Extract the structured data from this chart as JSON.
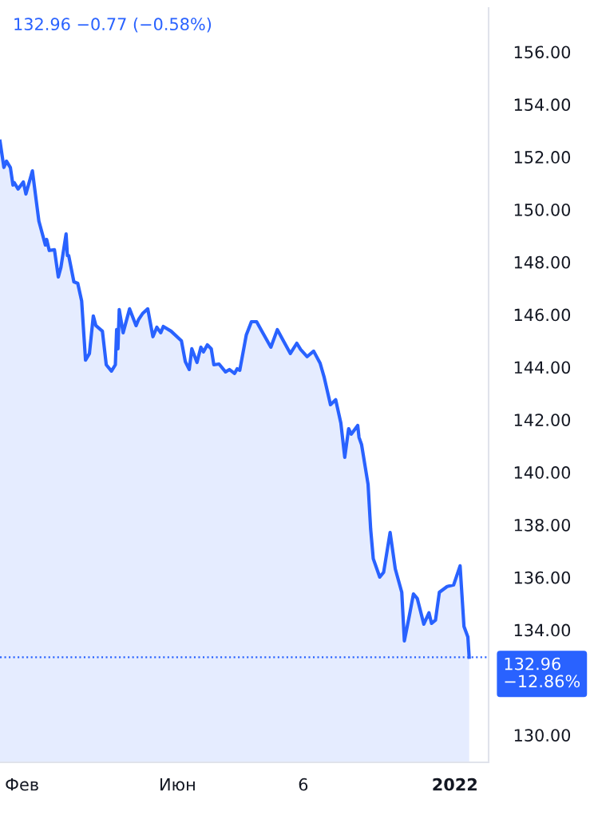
{
  "chart_data": {
    "type": "area",
    "annotations": [
      "132.96 −0.77 (−0.58%)"
    ],
    "x": [
      "2021-01-15",
      "2021-01-18",
      "2021-01-20",
      "2021-01-23",
      "2021-01-25",
      "2021-01-26",
      "2021-01-29",
      "2021-02-02",
      "2021-02-04",
      "2021-02-09",
      "2021-02-14",
      "2021-02-19",
      "2021-02-20",
      "2021-02-22",
      "2021-02-26",
      "2021-03-01",
      "2021-03-03",
      "2021-03-07",
      "2021-03-08",
      "2021-03-09",
      "2021-03-13",
      "2021-03-16",
      "2021-03-19",
      "2021-03-22",
      "2021-03-25",
      "2021-03-28",
      "2021-03-30",
      "2021-04-04",
      "2021-04-07",
      "2021-04-11",
      "2021-04-14",
      "2021-04-15",
      "2021-04-16",
      "2021-04-17",
      "2021-04-20",
      "2021-04-25",
      "2021-04-30",
      "2021-05-02",
      "2021-05-05",
      "2021-05-09",
      "2021-05-13",
      "2021-05-16",
      "2021-05-19",
      "2021-05-21",
      "2021-05-27",
      "2021-06-04",
      "2021-06-07",
      "2021-06-10",
      "2021-06-12",
      "2021-06-16",
      "2021-06-19",
      "2021-06-21",
      "2021-06-24",
      "2021-06-27",
      "2021-06-29",
      "2021-07-03",
      "2021-07-08",
      "2021-07-11",
      "2021-07-15",
      "2021-07-17",
      "2021-07-19",
      "2021-07-24",
      "2021-07-28",
      "2021-08-01",
      "2021-08-05",
      "2021-08-12",
      "2021-08-17",
      "2021-08-21",
      "2021-08-27",
      "2021-09-01",
      "2021-09-04",
      "2021-09-09",
      "2021-09-14",
      "2021-09-19",
      "2021-09-22",
      "2021-09-27",
      "2021-10-01",
      "2021-10-05",
      "2021-10-08",
      "2021-10-11",
      "2021-10-13",
      "2021-10-18",
      "2021-10-19",
      "2021-10-21",
      "2021-10-26",
      "2021-10-28",
      "2021-10-30",
      "2021-11-04",
      "2021-11-07",
      "2021-11-12",
      "2021-11-16",
      "2021-11-21",
      "2021-11-23",
      "2021-11-27",
      "2021-11-30",
      "2021-12-03",
      "2021-12-08",
      "2021-12-12",
      "2021-12-14",
      "2021-12-17",
      "2021-12-20",
      "2021-12-26",
      "2021-12-31",
      "2022-01-05",
      "2022-01-08",
      "2022-01-11",
      "2022-01-12"
    ],
    "series": [
      {
        "color": "#2962ff",
        "values": [
          152.6,
          151.6,
          151.84,
          151.6,
          150.93,
          151.02,
          150.78,
          151.05,
          150.59,
          151.47,
          149.56,
          148.65,
          148.86,
          148.44,
          148.47,
          147.43,
          147.8,
          149.07,
          148.25,
          148.25,
          147.25,
          147.19,
          146.52,
          144.27,
          144.52,
          145.95,
          145.58,
          145.37,
          144.09,
          143.85,
          144.09,
          145.43,
          144.7,
          146.19,
          145.31,
          146.22,
          145.58,
          145.82,
          146.04,
          146.22,
          145.16,
          145.52,
          145.31,
          145.55,
          145.37,
          145.0,
          144.21,
          143.91,
          144.7,
          144.18,
          144.76,
          144.58,
          144.85,
          144.7,
          144.09,
          144.12,
          143.82,
          143.91,
          143.76,
          143.94,
          143.88,
          145.22,
          145.73,
          145.73,
          145.37,
          144.76,
          145.43,
          145.06,
          144.52,
          144.91,
          144.67,
          144.4,
          144.61,
          144.15,
          143.64,
          142.57,
          142.76,
          141.87,
          140.57,
          141.66,
          141.45,
          141.78,
          141.33,
          141.05,
          139.54,
          137.83,
          136.71,
          136.01,
          136.19,
          137.71,
          136.32,
          135.43,
          133.58,
          134.58,
          135.37,
          135.19,
          134.22,
          134.65,
          134.25,
          134.37,
          135.43,
          135.65,
          135.71,
          136.44,
          134.13,
          133.73,
          132.96
        ]
      }
    ],
    "xlim": [
      "2021-01-15",
      "2022-01-27"
    ],
    "xticks": [
      {
        "value": "2021-02-01",
        "label": "Фев"
      },
      {
        "value": "2021-06-01",
        "label": "Июн"
      },
      {
        "value": "2021-09-06",
        "label": "6"
      },
      {
        "value": "2022-01-01",
        "label": "2022"
      }
    ],
    "ylim": [
      128.96,
      157.67
    ],
    "yticks": [
      {
        "value": 130,
        "label": "130.00"
      },
      {
        "value": 134,
        "label": "134.00"
      },
      {
        "value": 136,
        "label": "136.00"
      },
      {
        "value": 138,
        "label": "138.00"
      },
      {
        "value": 140,
        "label": "140.00"
      },
      {
        "value": 142,
        "label": "142.00"
      },
      {
        "value": 144,
        "label": "144.00"
      },
      {
        "value": 146,
        "label": "146.00"
      },
      {
        "value": 148,
        "label": "148.00"
      },
      {
        "value": 150,
        "label": "150.00"
      },
      {
        "value": 152,
        "label": "152.00"
      },
      {
        "value": 154,
        "label": "154.00"
      },
      {
        "value": 156,
        "label": "156.00"
      }
    ],
    "ref_lines": [
      {
        "axis": "y",
        "value": 132.96,
        "label": "132.96\n−12.86%",
        "color": "#2962ff",
        "line_style": "dotted"
      }
    ],
    "grid": false,
    "legend": false,
    "line_style": "solid"
  }
}
